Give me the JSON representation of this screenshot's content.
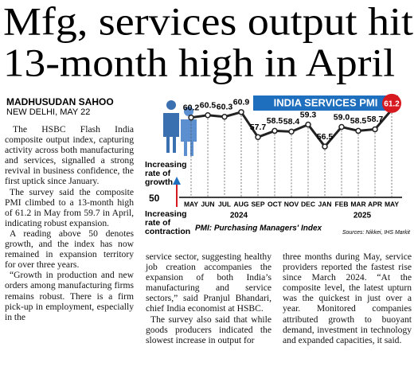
{
  "headline": {
    "line1": "Mfg, services output hit",
    "line2": "13-month high in April"
  },
  "byline": {
    "author": "MADHUSUDAN SAHOO",
    "dateline": "NEW DELHI, MAY 22"
  },
  "columns": [
    [
      "The HSBC Flash India composite output index, capturing activity across both manufacturing and services, signalled a strong revival in business confidence, the first uptick since January.",
      "The survey said the composite PMI climbed to a 13-month high of 61.2 in May from 59.7 in April, indicating robust expansion.",
      "A reading above 50 denotes growth, and the index has now remained in expansion territory for over three years.",
      "“Growth in production and new orders among manufacturing firms remains robust. There is a firm pick-up in employment, especially in the"
    ],
    [
      "service sector, suggesting healthy job creation accompanies the expansion of both India’s manufacturing and service sectors,” said Pranjul Bhandari, chief India economist at HSBC.",
      "The survey also said that while goods producers indicated the slowest increase in output for"
    ],
    [
      "three months during May, service providers reported the fastest rise since March 2024. “At the composite level, the latest upturn was the quickest in just over a year. Monitored companies attributed growth to buoyant demand, investment in technology and expanded capacities, it said."
    ]
  ],
  "chart_data": {
    "type": "line",
    "title": "INDIA SERVICES PMI",
    "categories": [
      "MAY",
      "JUN",
      "JUL",
      "AUG",
      "SEP",
      "OCT",
      "NOV",
      "DEC",
      "JAN",
      "FEB",
      "MAR",
      "APR",
      "MAY"
    ],
    "years": [
      "2024",
      "2025"
    ],
    "values": [
      60.2,
      60.5,
      60.3,
      60.9,
      57.7,
      58.5,
      58.4,
      59.3,
      56.5,
      59.0,
      58.5,
      58.7,
      61.2
    ],
    "value_labels": [
      "60.2",
      "60.5",
      "60.3",
      "60.9",
      "57.7",
      "58.5",
      "58.4",
      "59.3",
      "56.5",
      "59.0",
      "58.5",
      "58.7",
      "61.2"
    ],
    "color": "#222222",
    "highlight_color": "#d71920",
    "ylim": [
      50,
      62
    ],
    "yticks": [
      50
    ],
    "growth_label": "Increasing rate of growth",
    "contraction_label": "Increasing rate of contraction",
    "note": "PMI: Purchasing Managers' Index",
    "source": "Sources: Nikkei, IHS Markit"
  }
}
